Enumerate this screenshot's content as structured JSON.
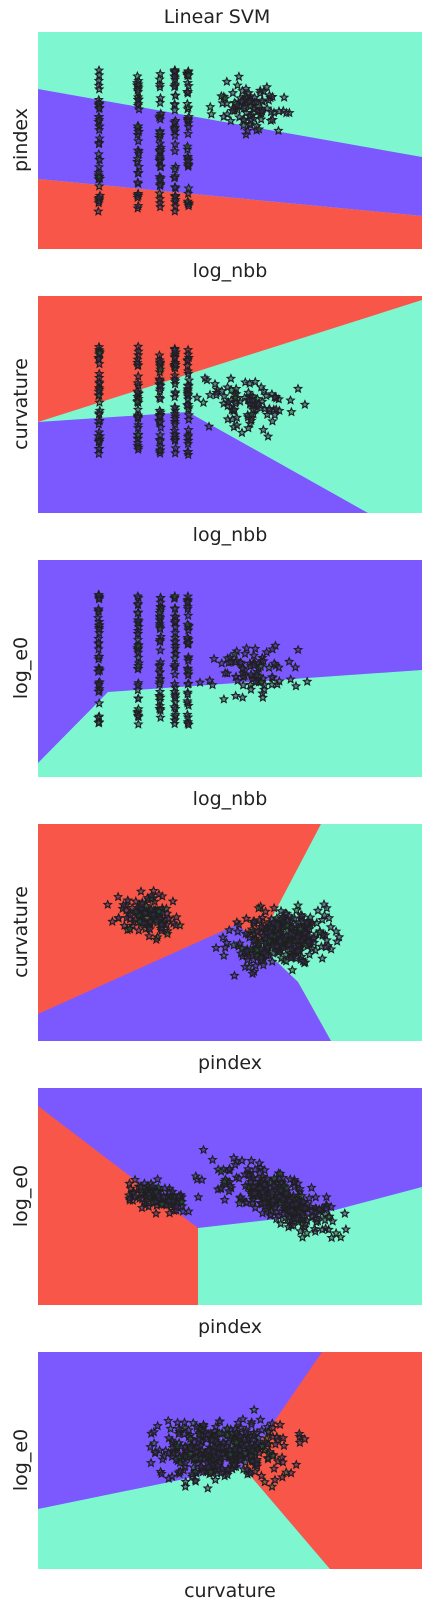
{
  "title": "Linear SVM",
  "colors": {
    "class_red": "#f9564a",
    "class_violet": "#7b59ff",
    "class_teal": "#7ef7d0",
    "marker_edge": "#1f1f1f"
  },
  "chart_data": [
    {
      "type": "scatter",
      "xlabel": "log_nbb",
      "ylabel": "pindex",
      "ticks_shown": false,
      "grid": false
    },
    {
      "type": "scatter",
      "xlabel": "log_nbb",
      "ylabel": "curvature",
      "ticks_shown": false,
      "grid": false
    },
    {
      "type": "scatter",
      "xlabel": "log_nbb",
      "ylabel": "log_e0",
      "ticks_shown": false,
      "grid": false
    },
    {
      "type": "scatter",
      "xlabel": "pindex",
      "ylabel": "curvature",
      "ticks_shown": false,
      "grid": false
    },
    {
      "type": "scatter",
      "xlabel": "pindex",
      "ylabel": "log_e0",
      "ticks_shown": false,
      "grid": false
    },
    {
      "type": "scatter",
      "xlabel": "curvature",
      "ylabel": "log_e0",
      "ticks_shown": false,
      "grid": false
    }
  ]
}
